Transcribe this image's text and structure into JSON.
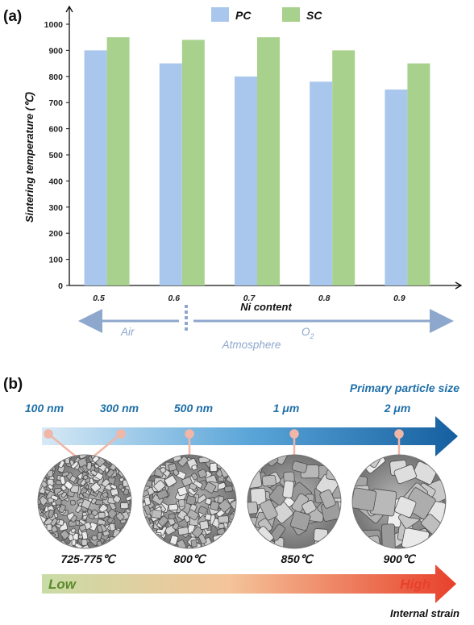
{
  "panels": {
    "a": "(a)",
    "b": "(b)"
  },
  "chart_data": {
    "type": "bar",
    "title": "",
    "xlabel": "Ni content",
    "ylabel": "Sintering temperature (℃)",
    "categories": [
      "0.5",
      "0.6",
      "0.7",
      "0.8",
      "0.9"
    ],
    "ylim": [
      0,
      1000
    ],
    "yticks": [
      0,
      100,
      200,
      300,
      400,
      500,
      600,
      700,
      800,
      900,
      1000
    ],
    "legend_position": "top",
    "series": [
      {
        "name": "PC",
        "color": "#a9c7ec",
        "values": [
          900,
          850,
          800,
          780,
          750
        ]
      },
      {
        "name": "SC",
        "color": "#a8d18d",
        "values": [
          950,
          940,
          950,
          900,
          850
        ]
      }
    ]
  },
  "atmosphere": {
    "left": "Air",
    "right": "O2",
    "right_base": "O",
    "right_sub": "2",
    "caption": "Atmosphere",
    "color": "#8ea7cd"
  },
  "size_scale": {
    "title": "Primary particle size",
    "labels": [
      "100 nm",
      "300 nm",
      "500 nm",
      "1 μm",
      "2 μm"
    ]
  },
  "micrographs": {
    "temperatures": [
      "725-775℃",
      "800℃",
      "850℃",
      "900℃"
    ]
  },
  "strain_scale": {
    "low": "Low",
    "high": "High",
    "title": "Internal strain"
  }
}
